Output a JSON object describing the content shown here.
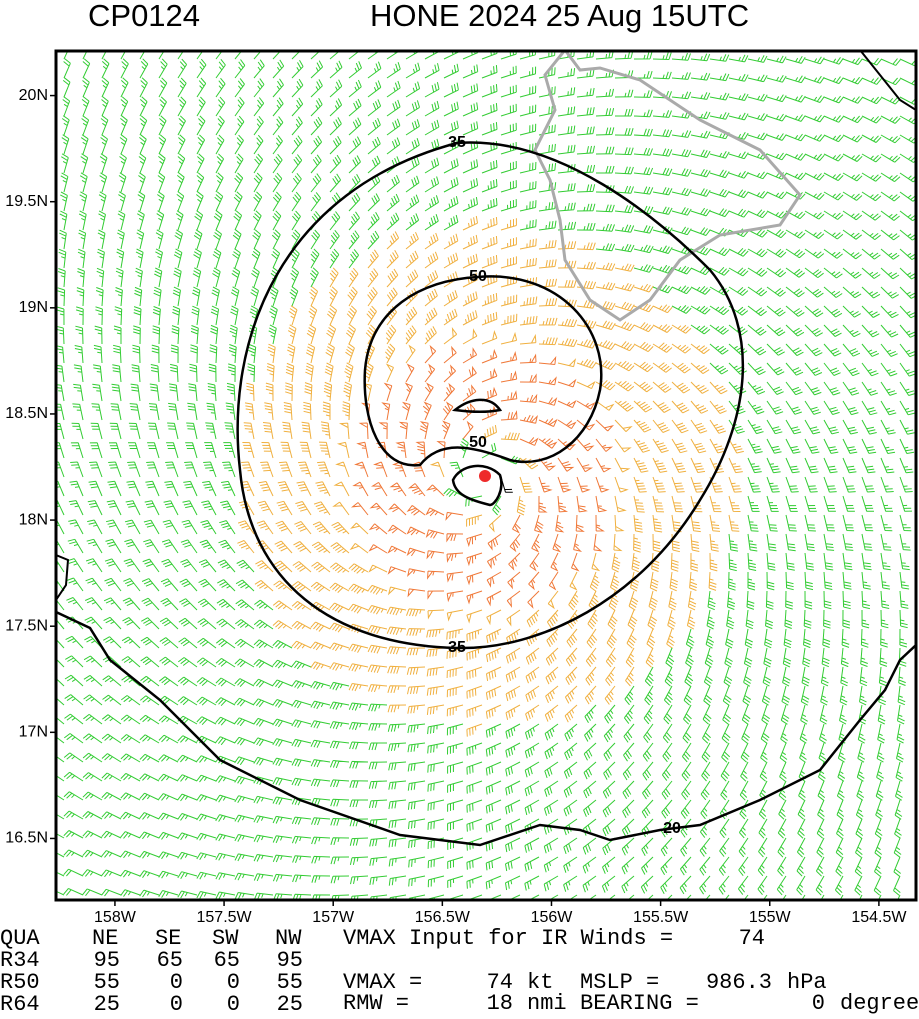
{
  "header": {
    "id": "CP0124",
    "title": "HONE 2024 25 Aug 15UTC"
  },
  "map": {
    "xlim": [
      -158.27,
      -154.33
    ],
    "ylim": [
      16.21,
      20.21
    ],
    "xticks": [
      {
        "value": -158,
        "label": "158W"
      },
      {
        "value": -157.5,
        "label": "157.5W"
      },
      {
        "value": -157,
        "label": "157W"
      },
      {
        "value": -156.5,
        "label": "156.5W"
      },
      {
        "value": -156,
        "label": "156W"
      },
      {
        "value": -155.5,
        "label": "155.5W"
      },
      {
        "value": -155,
        "label": "155W"
      },
      {
        "value": -154.5,
        "label": "154.5W"
      }
    ],
    "yticks": [
      {
        "value": 16.5,
        "label": "16.5N"
      },
      {
        "value": 17,
        "label": "17N"
      },
      {
        "value": 17.5,
        "label": "17.5N"
      },
      {
        "value": 18,
        "label": "18N"
      },
      {
        "value": 18.5,
        "label": "18.5N"
      },
      {
        "value": 19,
        "label": "19N"
      },
      {
        "value": 19.5,
        "label": "19.5N"
      },
      {
        "value": 20,
        "label": "20N"
      }
    ],
    "contour_labels": [
      35,
      50,
      50,
      35,
      20
    ]
  },
  "table": {
    "header": [
      "QUA",
      "NE",
      "SE",
      "SW",
      "NW"
    ],
    "rows": [
      {
        "name": "R34",
        "values": [
          95,
          65,
          65,
          95
        ]
      },
      {
        "name": "R50",
        "values": [
          55,
          0,
          0,
          55
        ]
      },
      {
        "name": "R64",
        "values": [
          25,
          0,
          0,
          25
        ]
      }
    ]
  },
  "info": {
    "ir_label": "VMAX Input for IR Winds =",
    "ir_value": 74,
    "vmax_label": "VMAX =",
    "vmax": 74,
    "vmax_unit": "kt",
    "mslp_label": "MSLP =",
    "mslp": 986.3,
    "mslp_unit": "hPa",
    "rmw_label": "RMW =",
    "rmw": 18,
    "rmw_unit": "nmi",
    "bearing_label": "BEARING =",
    "bearing": 0,
    "bearing_unit": "degrees"
  }
}
